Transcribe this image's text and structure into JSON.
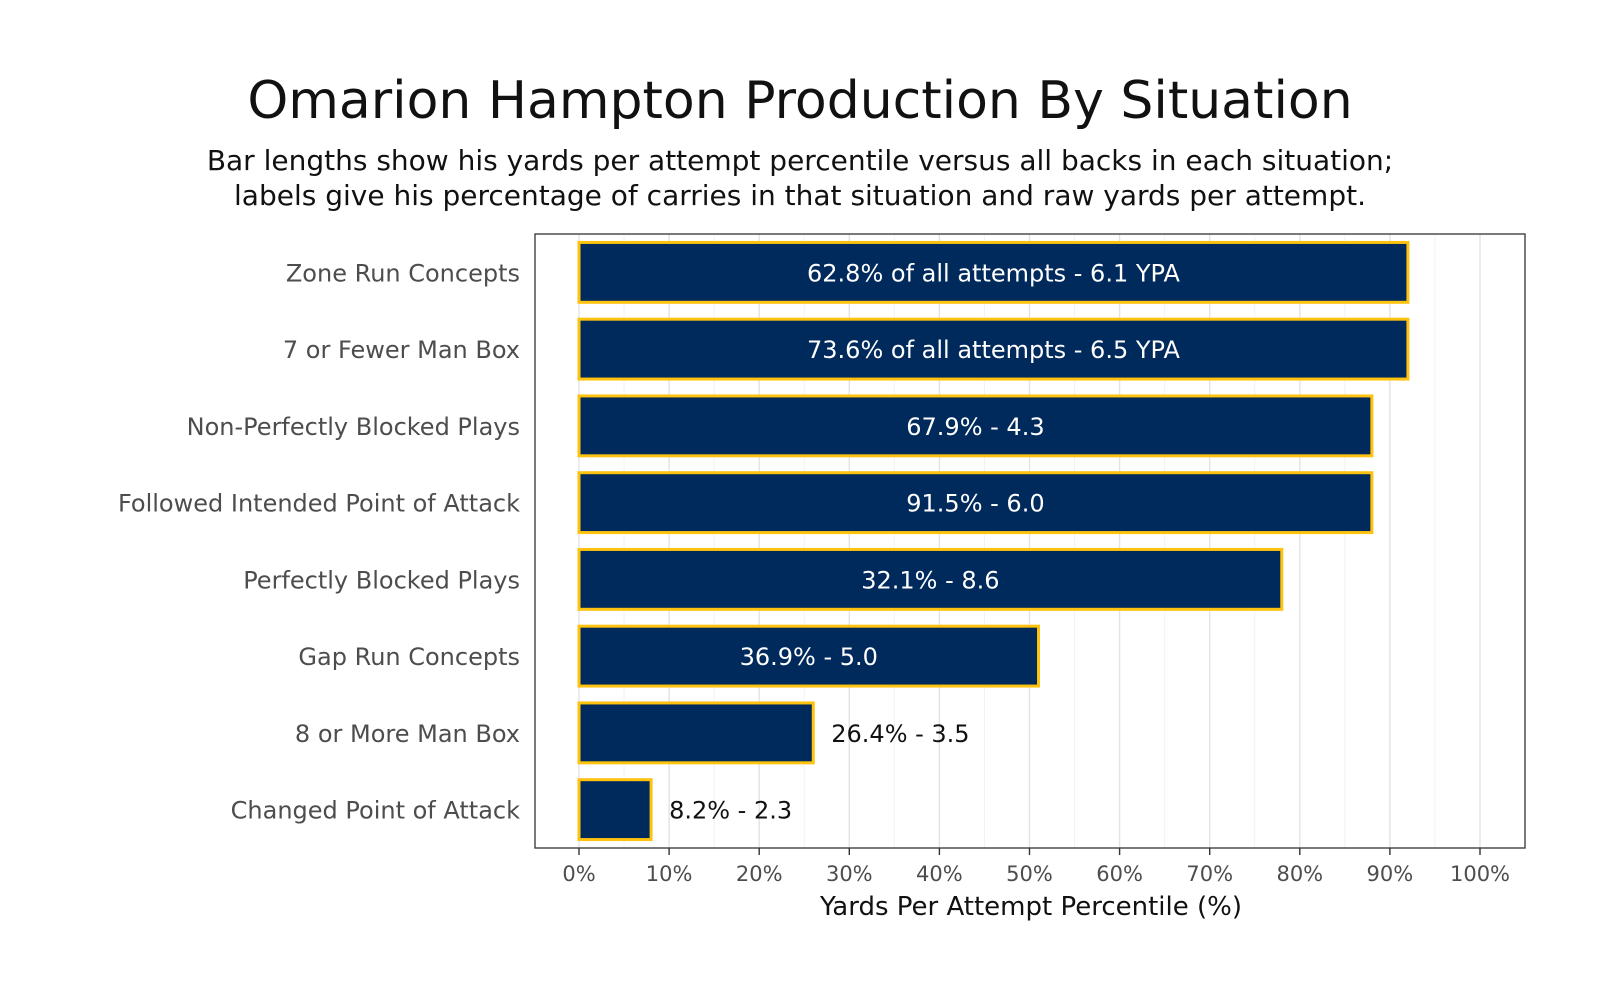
{
  "chart_data": {
    "type": "bar",
    "orientation": "horizontal",
    "title": "Omarion Hampton Production By Situation",
    "subtitle": [
      "Bar lengths show his yards per attempt percentile versus all backs in each situation;",
      "labels give his percentage of carries in that situation and raw yards per attempt."
    ],
    "xlabel": "Yards Per Attempt Percentile (%)",
    "ylabel": "",
    "xlim": [
      0,
      100
    ],
    "xticks": [
      "0%",
      "10%",
      "20%",
      "30%",
      "40%",
      "50%",
      "60%",
      "70%",
      "80%",
      "90%",
      "100%"
    ],
    "grid": true,
    "legend": "none",
    "categories": [
      "Zone Run Concepts",
      "7 or Fewer Man Box",
      "Non-Perfectly Blocked Plays",
      "Followed Intended Point of Attack",
      "Perfectly Blocked Plays",
      "Gap Run Concepts",
      "8 or More Man Box",
      "Changed Point of Attack"
    ],
    "values": [
      92,
      92,
      88,
      88,
      78,
      51,
      26,
      8
    ],
    "labels": [
      "62.8% of all attempts - 6.1 YPA",
      "73.6% of all attempts - 6.5 YPA",
      "67.9% - 4.3",
      "91.5% - 6.0",
      "32.1% - 8.6",
      "36.9% - 5.0",
      "26.4% - 3.5",
      "8.2% - 2.3"
    ],
    "label_inside": [
      true,
      true,
      true,
      true,
      true,
      true,
      false,
      false
    ],
    "bar_fill": "#002a5c",
    "bar_border": "#ffc20e"
  }
}
